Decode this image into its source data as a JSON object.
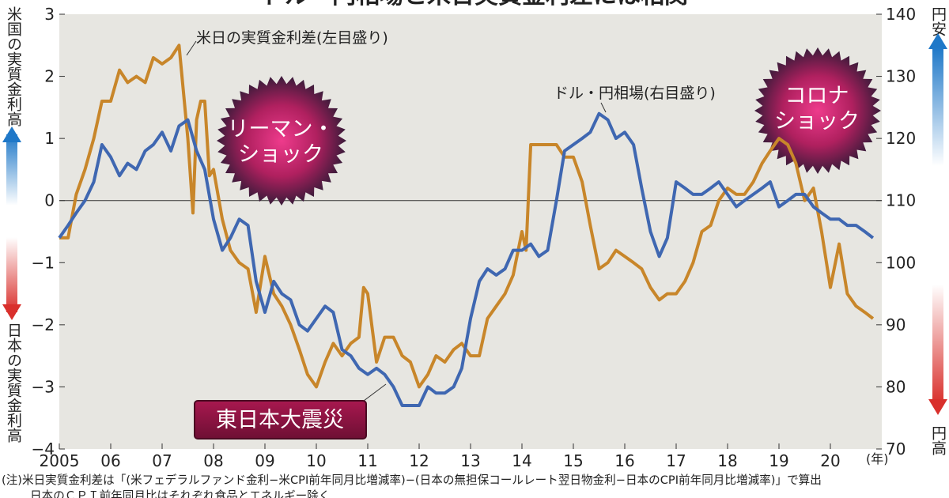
{
  "title_fragment": "ドル・円相場と米日実質金利差には相関",
  "left_axis": {
    "top_label": "米国の実質金利高",
    "bottom_label": "日本の実質金利高",
    "ticks": [
      "3",
      "2",
      "1",
      "0",
      "−1",
      "−2",
      "−3",
      "−4"
    ]
  },
  "right_axis": {
    "top_label": "円安",
    "bottom_label": "円高",
    "ticks": [
      "140",
      "130",
      "120",
      "110",
      "100",
      "90",
      "80",
      "70"
    ]
  },
  "x_axis": {
    "ticks": [
      "2005",
      "06",
      "07",
      "08",
      "09",
      "10",
      "11",
      "12",
      "13",
      "14",
      "15",
      "16",
      "17",
      "18",
      "19",
      "20"
    ],
    "unit": "(年)"
  },
  "annotations": {
    "rate_series_label": "米日の実質金利差(左目盛り)",
    "fx_series_label": "ドル・円相場(右目盛り)",
    "lehman_line1": "リーマン・",
    "lehman_line2": "ショック",
    "corona_line1": "コロナ",
    "corona_line2": "ショック",
    "earthquake": "東日本大震災"
  },
  "note_line1": "(注)米日実質金利差は「(米フェデラルファンド金利−米CPI前年同月比増減率)−(日本の無担保コールレート翌日物金利−日本のCPI前年同月比増減率)」で算出",
  "note_line2": "日本のＣＰＩ前年同月比はそれぞれ食品とエネルギー除く",
  "colors": {
    "rate_line": "#c8862a",
    "fx_line": "#3f67b1",
    "plot_bg": "#e7e6e1",
    "burst": "#c2226a",
    "earthquake_box": "#8a1240",
    "arrow_blue": "#1f78c8",
    "arrow_red": "#d9302c"
  },
  "chart_data": {
    "type": "line",
    "x_range": [
      2005,
      2021
    ],
    "left_ylim": [
      -4,
      3
    ],
    "right_ylim": [
      70,
      140
    ],
    "series": [
      {
        "name": "米日の実質金利差(左目盛り)",
        "axis": "left",
        "x": [
          2005.0,
          2005.17,
          2005.33,
          2005.5,
          2005.67,
          2005.83,
          2006.0,
          2006.17,
          2006.33,
          2006.5,
          2006.67,
          2006.83,
          2007.0,
          2007.17,
          2007.33,
          2007.5,
          2007.6,
          2007.67,
          2007.75,
          2007.83,
          2007.92,
          2008.0,
          2008.17,
          2008.33,
          2008.5,
          2008.67,
          2008.83,
          2009.0,
          2009.17,
          2009.33,
          2009.5,
          2009.67,
          2009.83,
          2010.0,
          2010.17,
          2010.33,
          2010.5,
          2010.67,
          2010.83,
          2010.92,
          2011.0,
          2011.17,
          2011.33,
          2011.5,
          2011.67,
          2011.83,
          2012.0,
          2012.17,
          2012.33,
          2012.5,
          2012.67,
          2012.83,
          2013.0,
          2013.17,
          2013.33,
          2013.5,
          2013.67,
          2013.83,
          2014.0,
          2014.08,
          2014.17,
          2014.33,
          2014.5,
          2014.67,
          2014.83,
          2015.0,
          2015.17,
          2015.33,
          2015.5,
          2015.67,
          2015.83,
          2016.0,
          2016.17,
          2016.33,
          2016.5,
          2016.67,
          2016.83,
          2017.0,
          2017.17,
          2017.33,
          2017.5,
          2017.67,
          2017.83,
          2018.0,
          2018.17,
          2018.33,
          2018.5,
          2018.67,
          2018.83,
          2019.0,
          2019.17,
          2019.33,
          2019.5,
          2019.67,
          2019.83,
          2020.0,
          2020.17,
          2020.33,
          2020.5,
          2020.67,
          2020.83
        ],
        "values": [
          -0.6,
          -0.6,
          0.1,
          0.5,
          1.0,
          1.6,
          1.6,
          2.1,
          1.9,
          2.0,
          1.9,
          2.3,
          2.2,
          2.3,
          2.5,
          1.0,
          -0.2,
          1.3,
          1.6,
          1.6,
          0.4,
          0.5,
          -0.3,
          -0.8,
          -1.0,
          -1.1,
          -1.8,
          -0.9,
          -1.5,
          -1.7,
          -2.0,
          -2.4,
          -2.8,
          -3.0,
          -2.6,
          -2.3,
          -2.5,
          -2.3,
          -2.2,
          -1.4,
          -1.5,
          -2.6,
          -2.2,
          -2.2,
          -2.5,
          -2.6,
          -3.0,
          -2.8,
          -2.5,
          -2.6,
          -2.4,
          -2.3,
          -2.5,
          -2.5,
          -1.9,
          -1.7,
          -1.5,
          -1.2,
          -0.5,
          -0.8,
          0.9,
          0.9,
          0.9,
          0.9,
          0.7,
          0.7,
          0.3,
          -0.4,
          -1.1,
          -1.0,
          -0.8,
          -0.9,
          -1.0,
          -1.1,
          -1.4,
          -1.6,
          -1.5,
          -1.5,
          -1.3,
          -1.0,
          -0.5,
          -0.4,
          0.0,
          0.2,
          0.1,
          0.1,
          0.3,
          0.6,
          0.8,
          1.0,
          0.9,
          0.6,
          0.0,
          0.2,
          -0.5,
          -1.4,
          -0.7,
          -1.5,
          -1.7,
          -1.8,
          -1.9
        ]
      },
      {
        "name": "ドル・円相場(右目盛り)",
        "axis": "right",
        "x": [
          2005.0,
          2005.17,
          2005.33,
          2005.5,
          2005.67,
          2005.83,
          2006.0,
          2006.17,
          2006.33,
          2006.5,
          2006.67,
          2006.83,
          2007.0,
          2007.17,
          2007.33,
          2007.5,
          2007.67,
          2007.83,
          2008.0,
          2008.17,
          2008.33,
          2008.5,
          2008.67,
          2008.83,
          2009.0,
          2009.17,
          2009.33,
          2009.5,
          2009.67,
          2009.83,
          2010.0,
          2010.17,
          2010.33,
          2010.5,
          2010.67,
          2010.83,
          2011.0,
          2011.17,
          2011.33,
          2011.5,
          2011.67,
          2011.83,
          2012.0,
          2012.17,
          2012.33,
          2012.5,
          2012.67,
          2012.83,
          2013.0,
          2013.17,
          2013.33,
          2013.5,
          2013.67,
          2013.83,
          2014.0,
          2014.17,
          2014.33,
          2014.5,
          2014.67,
          2014.83,
          2015.0,
          2015.17,
          2015.33,
          2015.5,
          2015.67,
          2015.83,
          2016.0,
          2016.17,
          2016.33,
          2016.5,
          2016.67,
          2016.83,
          2017.0,
          2017.17,
          2017.33,
          2017.5,
          2017.67,
          2017.83,
          2018.0,
          2018.17,
          2018.33,
          2018.5,
          2018.67,
          2018.83,
          2019.0,
          2019.17,
          2019.33,
          2019.5,
          2019.67,
          2019.83,
          2020.0,
          2020.17,
          2020.33,
          2020.5,
          2020.67,
          2020.83
        ],
        "values": [
          104,
          106,
          108,
          110,
          113,
          119,
          117,
          114,
          116,
          115,
          118,
          119,
          121,
          118,
          122,
          123,
          118,
          115,
          107,
          102,
          104,
          107,
          106,
          97,
          92,
          97,
          95,
          94,
          90,
          89,
          91,
          93,
          92,
          86,
          85,
          83,
          82,
          83,
          82,
          80,
          77,
          77,
          77,
          80,
          79,
          79,
          80,
          83,
          91,
          97,
          99,
          98,
          99,
          102,
          102,
          103,
          101,
          102,
          110,
          118,
          119,
          120,
          121,
          124,
          123,
          120,
          121,
          119,
          112,
          105,
          101,
          104,
          113,
          112,
          111,
          111,
          112,
          113,
          111,
          109,
          110,
          111,
          112,
          113,
          109,
          110,
          111,
          111,
          109,
          108,
          107,
          107,
          106,
          106,
          105,
          104
        ]
      }
    ]
  }
}
